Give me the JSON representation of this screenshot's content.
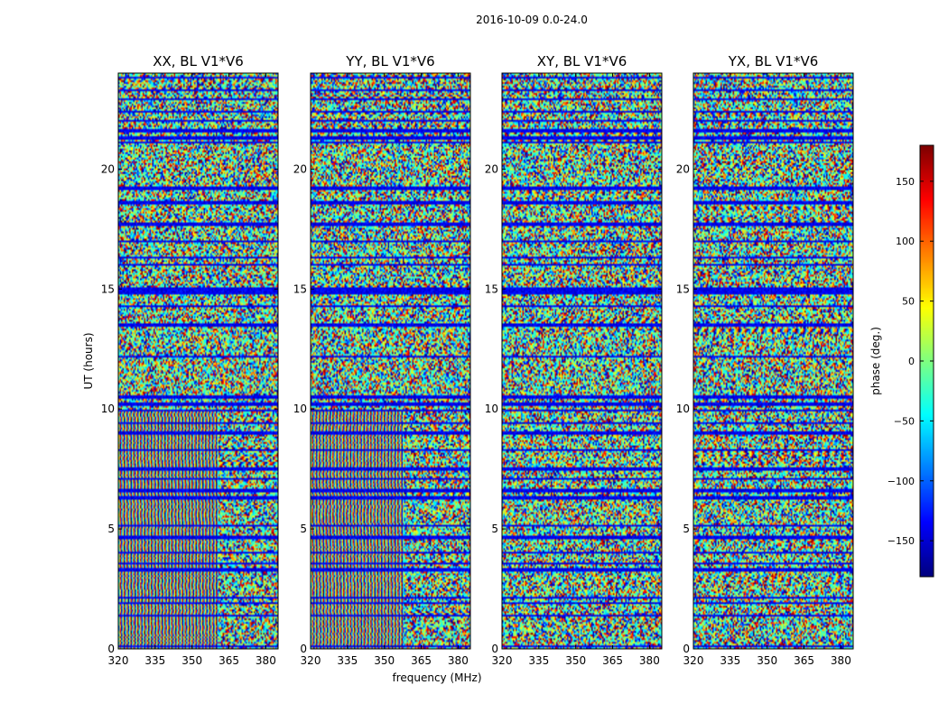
{
  "chart_data": {
    "type": "heatmap",
    "suptitle": "2016-10-09 0.0-24.0",
    "xlabel": "frequency (MHz)",
    "ylabel": "UT (hours)",
    "xlim": [
      320,
      385
    ],
    "ylim": [
      0,
      24
    ],
    "xticks": [
      320,
      335,
      350,
      365,
      380
    ],
    "yticks": [
      0,
      5,
      10,
      15,
      20
    ],
    "colormap": "jet",
    "panels": [
      {
        "title": "XX, BL V1*V6",
        "fringe_hours": [
          [
            0,
            10
          ]
        ],
        "fringe_freq_max": 361
      },
      {
        "title": "YY, BL V1*V6",
        "fringe_hours": [
          [
            0,
            10
          ]
        ],
        "fringe_freq_max": 358
      },
      {
        "title": "XY, BL V1*V6",
        "fringe_hours": [],
        "fringe_freq_max": 0
      },
      {
        "title": "YX, BL V1*V6",
        "fringe_hours": [],
        "fringe_freq_max": 0
      }
    ],
    "colorbar": {
      "label": "phase (deg.)",
      "range": [
        -180,
        180
      ],
      "ticks": [
        -150,
        -100,
        -50,
        0,
        50,
        100,
        150
      ],
      "tick_labels": [
        "−150",
        "−100",
        "−50",
        "0",
        "50",
        "100",
        "150"
      ]
    },
    "flagged_hours": [
      0.1,
      1.4,
      1.9,
      2.15,
      3.3,
      3.55,
      4.0,
      4.65,
      5.15,
      6.3,
      6.6,
      7.1,
      7.5,
      8.3,
      9.0,
      9.4,
      9.95,
      10.2,
      10.5,
      12.2,
      13.5,
      14.3,
      14.85,
      15.0,
      16.0,
      16.3,
      17.0,
      17.7,
      18.6,
      19.2,
      21.1,
      21.3,
      21.6,
      22.0,
      22.4,
      22.9,
      23.3,
      23.8
    ]
  }
}
